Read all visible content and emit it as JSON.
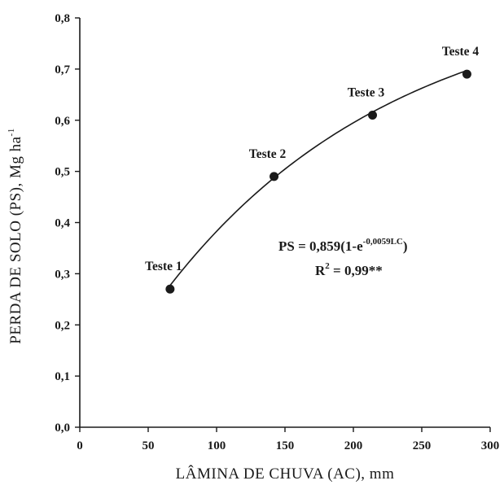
{
  "chart_data": {
    "type": "scatter",
    "xlabel": "LÂMINA DE CHUVA (AC), mm",
    "ylabel_main": "PERDA DE SOLO (PS), Mg ha",
    "ylabel_sup": "-1",
    "xlim": [
      0,
      300
    ],
    "ylim": [
      0,
      0.8
    ],
    "x_ticks": [
      0,
      50,
      100,
      150,
      200,
      250,
      300
    ],
    "x_tick_labels": [
      "0",
      "50",
      "100",
      "150",
      "200",
      "250",
      "300"
    ],
    "y_ticks": [
      0,
      0.1,
      0.2,
      0.3,
      0.4,
      0.5,
      0.6,
      0.7,
      0.8
    ],
    "y_tick_labels": [
      "0,0",
      "0,1",
      "0,2",
      "0,3",
      "0,4",
      "0,5",
      "0,6",
      "0,7",
      "0,8"
    ],
    "grid": false,
    "points": [
      {
        "label": "Teste 1",
        "x": 66,
        "y": 0.27
      },
      {
        "label": "Teste 2",
        "x": 142,
        "y": 0.49
      },
      {
        "label": "Teste 3",
        "x": 214,
        "y": 0.61
      },
      {
        "label": "Teste 4",
        "x": 283,
        "y": 0.69
      }
    ],
    "fit": {
      "model": "exponential",
      "a": 0.859,
      "b": 0.0059,
      "x_range": [
        66,
        283
      ]
    },
    "equation": {
      "line1_main": "PS = 0,859(1-e",
      "line1_sup": "-0,0059LC",
      "line1_end": ")",
      "line2_pre": "R",
      "line2_sup": "2",
      "line2_post": " = 0,99**"
    },
    "colors": {
      "marker": "#1a1a1a",
      "line": "#1a1a1a",
      "axis": "#1a1a1a"
    }
  }
}
